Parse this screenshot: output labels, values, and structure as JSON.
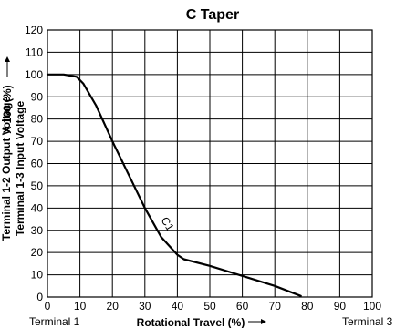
{
  "chart_data": {
    "type": "line",
    "title": "C Taper",
    "xlabel": "Rotational Travel (%)",
    "ylabel_line1": "Terminal 1-2 Output Voltage",
    "ylabel_line2": "Terminal 1-3 Input Voltage",
    "ylabel_suffix": "X 100 (%)",
    "xlim": [
      0,
      100
    ],
    "ylim": [
      0,
      120
    ],
    "x_ticks": [
      "0",
      "10",
      "20",
      "30",
      "40",
      "50",
      "60",
      "70",
      "80",
      "90",
      "100"
    ],
    "y_ticks": [
      "0",
      "10",
      "20",
      "30",
      "40",
      "50",
      "60",
      "70",
      "80",
      "90",
      "100",
      "110",
      "120"
    ],
    "grid": true,
    "terminal_left_label": "Terminal 1",
    "terminal_right_label": "Terminal 3",
    "series": [
      {
        "name": "C1",
        "points": [
          [
            0,
            100
          ],
          [
            5,
            100
          ],
          [
            9,
            99
          ],
          [
            11,
            96
          ],
          [
            15,
            86
          ],
          [
            20,
            70
          ],
          [
            25,
            55
          ],
          [
            30,
            40
          ],
          [
            35,
            27
          ],
          [
            40,
            19
          ],
          [
            42,
            17
          ],
          [
            50,
            14
          ],
          [
            60,
            9.5
          ],
          [
            70,
            5
          ],
          [
            78,
            0.5
          ]
        ]
      }
    ],
    "annotations": [
      {
        "text": "C1",
        "x": 36,
        "y": 32
      }
    ]
  }
}
